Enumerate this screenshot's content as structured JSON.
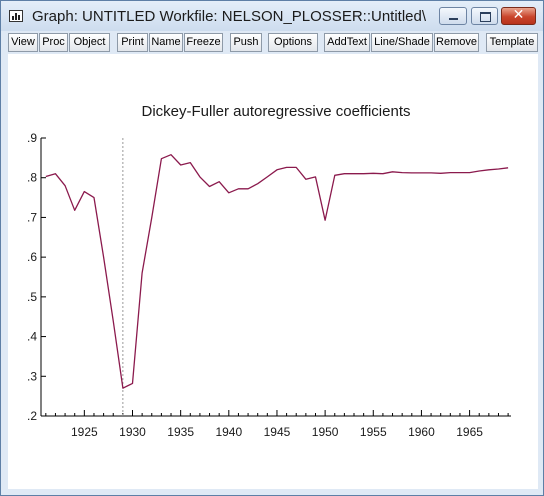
{
  "window": {
    "title": "Graph: UNTITLED   Workfile: NELSON_PLOSSER::Untitled\\",
    "icon": "graph-window-icon",
    "controls": {
      "minimize_icon": "minimize-icon",
      "maximize_icon": "maximize-icon",
      "close_glyph": "✕"
    }
  },
  "toolbar": {
    "view": "View",
    "proc": "Proc",
    "object": "Object",
    "print": "Print",
    "name": "Name",
    "freeze": "Freeze",
    "push": "Push",
    "options": "Options",
    "addtext": "AddText",
    "lineshade": "Line/Shade",
    "remove": "Remove",
    "template": "Template"
  },
  "chart_data": {
    "type": "line",
    "title": "Dickey-Fuller autoregressive coefficients",
    "xlabel": "",
    "ylabel": "",
    "xlim": [
      1920.5,
      1969.3
    ],
    "ylim": [
      0.2,
      0.9
    ],
    "y_ticks": [
      0.2,
      0.3,
      0.4,
      0.5,
      0.6,
      0.7,
      0.8,
      0.9
    ],
    "y_tick_labels": [
      ".2",
      ".3",
      ".4",
      ".5",
      ".6",
      ".7",
      ".8",
      ".9"
    ],
    "x_ticks": [
      1925,
      1930,
      1935,
      1940,
      1945,
      1950,
      1955,
      1960,
      1965
    ],
    "x_tick_labels": [
      "1925",
      "1930",
      "1935",
      "1940",
      "1945",
      "1950",
      "1955",
      "1960",
      "1965"
    ],
    "vertical_reference_line": 1929,
    "grid": false,
    "line_color": "#8b1a4d",
    "reference_line_color": "#9a9a9a",
    "series": [
      {
        "x": [
          1921,
          1922,
          1923,
          1924,
          1925,
          1926,
          1927,
          1928,
          1929,
          1930,
          1931,
          1932,
          1933,
          1934,
          1935,
          1936,
          1937,
          1938,
          1939,
          1940,
          1941,
          1942,
          1943,
          1944,
          1945,
          1946,
          1947,
          1948,
          1949,
          1950,
          1951,
          1952,
          1953,
          1954,
          1955,
          1956,
          1957,
          1958,
          1959,
          1960,
          1961,
          1962,
          1963,
          1964,
          1965,
          1966,
          1967,
          1968,
          1969
        ],
        "y": [
          0.803,
          0.81,
          0.78,
          0.718,
          0.765,
          0.75,
          0.6,
          0.44,
          0.27,
          0.282,
          0.56,
          0.7,
          0.848,
          0.858,
          0.832,
          0.838,
          0.802,
          0.778,
          0.79,
          0.762,
          0.772,
          0.772,
          0.785,
          0.802,
          0.82,
          0.826,
          0.826,
          0.796,
          0.802,
          0.693,
          0.806,
          0.81,
          0.81,
          0.81,
          0.811,
          0.81,
          0.815,
          0.813,
          0.812,
          0.812,
          0.812,
          0.811,
          0.813,
          0.813,
          0.813,
          0.817,
          0.82,
          0.822,
          0.825
        ]
      }
    ]
  }
}
